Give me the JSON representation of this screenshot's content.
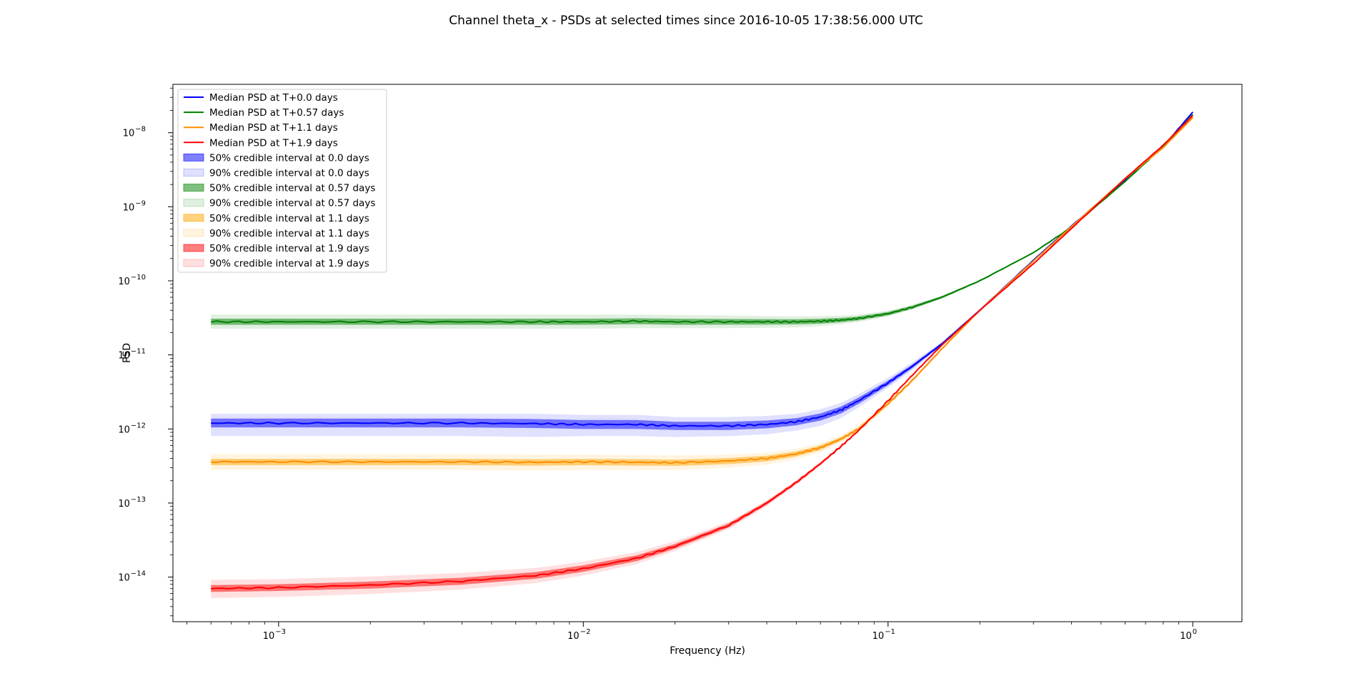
{
  "chart_data": {
    "type": "line",
    "title": "Channel theta_x - PSDs at selected times since 2016-10-05 17:38:56.000 UTC",
    "xlabel": "Frequency (Hz)",
    "ylabel": "PSD",
    "xscale": "log",
    "yscale": "log",
    "xlim": [
      0.00045,
      1.45
    ],
    "ylim": [
      2.5e-15,
      4.5e-08
    ],
    "grid": false,
    "legend_position": "top-left",
    "x_ticks": [
      {
        "value": 0.001,
        "base": "10",
        "exp": "−3"
      },
      {
        "value": 0.01,
        "base": "10",
        "exp": "−2"
      },
      {
        "value": 0.1,
        "base": "10",
        "exp": "−1"
      },
      {
        "value": 1,
        "base": "10",
        "exp": "0"
      }
    ],
    "y_ticks": [
      {
        "value": 1e-14,
        "base": "10",
        "exp": "−14"
      },
      {
        "value": 1e-13,
        "base": "10",
        "exp": "−13"
      },
      {
        "value": 1e-12,
        "base": "10",
        "exp": "−12"
      },
      {
        "value": 1e-11,
        "base": "10",
        "exp": "−11"
      },
      {
        "value": 1e-10,
        "base": "10",
        "exp": "−10"
      },
      {
        "value": 1e-09,
        "base": "10",
        "exp": "−9"
      },
      {
        "value": 1e-08,
        "base": "10",
        "exp": "−8"
      }
    ],
    "x": [
      0.0006,
      0.001,
      0.002,
      0.004,
      0.007,
      0.01,
      0.015,
      0.02,
      0.03,
      0.04,
      0.05,
      0.06,
      0.07,
      0.08,
      0.1,
      0.12,
      0.15,
      0.2,
      0.3,
      0.4,
      0.6,
      0.8,
      1.0
    ],
    "series": [
      {
        "name": "Median PSD at T+0.0 days",
        "color": "#0000ff",
        "values": [
          1.2e-12,
          1.2e-12,
          1.2e-12,
          1.2e-12,
          1.18e-12,
          1.15e-12,
          1.15e-12,
          1.1e-12,
          1.1e-12,
          1.15e-12,
          1.25e-12,
          1.45e-12,
          1.8e-12,
          2.4e-12,
          4.2e-12,
          7e-12,
          1.4e-11,
          4e-11,
          1.9e-10,
          5.5e-10,
          2.3e-09,
          6.5e-09,
          1.9e-08
        ],
        "band50": [
          [
            1.05e-12,
            1.38e-12
          ],
          [
            1.05e-12,
            1.38e-12
          ],
          [
            1.05e-12,
            1.38e-12
          ],
          [
            1.05e-12,
            1.38e-12
          ],
          [
            1.03e-12,
            1.36e-12
          ],
          [
            1e-12,
            1.32e-12
          ],
          [
            1e-12,
            1.32e-12
          ],
          [
            9.7e-13,
            1.25e-12
          ],
          [
            9.7e-13,
            1.25e-12
          ],
          [
            1.02e-12,
            1.3e-12
          ],
          [
            1.12e-12,
            1.4e-12
          ],
          [
            1.3e-12,
            1.62e-12
          ],
          [
            1.62e-12,
            2e-12
          ],
          [
            2.18e-12,
            2.65e-12
          ],
          [
            3.9e-12,
            4.5e-12
          ],
          [
            6.6e-12,
            7.4e-12
          ],
          [
            1.35e-11,
            1.45e-11
          ],
          [
            3.9e-11,
            4.1e-11
          ],
          [
            1.87e-10,
            1.93e-10
          ],
          [
            5.4e-10,
            5.6e-10
          ],
          [
            2.25e-09,
            2.35e-09
          ],
          [
            6.4e-09,
            6.6e-09
          ],
          [
            1.87e-08,
            1.93e-08
          ]
        ],
        "band90": [
          [
            8e-13,
            1.6e-12
          ],
          [
            8e-13,
            1.6e-12
          ],
          [
            8e-13,
            1.6e-12
          ],
          [
            8e-13,
            1.6e-12
          ],
          [
            7.8e-13,
            1.6e-12
          ],
          [
            8e-13,
            1.55e-12
          ],
          [
            8e-13,
            1.55e-12
          ],
          [
            7.8e-13,
            1.45e-12
          ],
          [
            8e-13,
            1.45e-12
          ],
          [
            8.5e-13,
            1.5e-12
          ],
          [
            9.5e-13,
            1.6e-12
          ],
          [
            1.1e-12,
            1.85e-12
          ],
          [
            1.4e-12,
            2.25e-12
          ],
          [
            1.95e-12,
            2.95e-12
          ],
          [
            3.6e-12,
            4.9e-12
          ],
          [
            6.2e-12,
            7.9e-12
          ],
          [
            1.3e-11,
            1.5e-11
          ],
          [
            3.8e-11,
            4.2e-11
          ],
          [
            1.85e-10,
            1.95e-10
          ],
          [
            5.35e-10,
            5.65e-10
          ],
          [
            2.23e-09,
            2.37e-09
          ],
          [
            6.35e-09,
            6.65e-09
          ],
          [
            1.85e-08,
            1.95e-08
          ]
        ]
      },
      {
        "name": "Median PSD at T+0.57 days",
        "color": "#008000",
        "values": [
          2.8e-11,
          2.8e-11,
          2.8e-11,
          2.8e-11,
          2.8e-11,
          2.8e-11,
          2.85e-11,
          2.8e-11,
          2.8e-11,
          2.8e-11,
          2.8e-11,
          2.85e-11,
          2.95e-11,
          3.1e-11,
          3.6e-11,
          4.4e-11,
          6e-11,
          1e-10,
          2.4e-10,
          5.3e-10,
          2.2e-09,
          6.5e-09,
          1.75e-08
        ],
        "band50": [
          [
            2.55e-11,
            3.08e-11
          ],
          [
            2.55e-11,
            3.08e-11
          ],
          [
            2.55e-11,
            3.08e-11
          ],
          [
            2.55e-11,
            3.08e-11
          ],
          [
            2.55e-11,
            3.08e-11
          ],
          [
            2.55e-11,
            3.08e-11
          ],
          [
            2.6e-11,
            3.12e-11
          ],
          [
            2.55e-11,
            3.08e-11
          ],
          [
            2.56e-11,
            3.05e-11
          ],
          [
            2.57e-11,
            3.04e-11
          ],
          [
            2.58e-11,
            3.03e-11
          ],
          [
            2.64e-11,
            3.08e-11
          ],
          [
            2.76e-11,
            3.16e-11
          ],
          [
            2.93e-11,
            3.3e-11
          ],
          [
            3.42e-11,
            3.8e-11
          ],
          [
            4.2e-11,
            4.6e-11
          ],
          [
            5.8e-11,
            6.2e-11
          ],
          [
            9.8e-11,
            1.02e-10
          ],
          [
            2.37e-10,
            2.43e-10
          ],
          [
            5.25e-10,
            5.35e-10
          ],
          [
            2.18e-09,
            2.22e-09
          ],
          [
            6.45e-09,
            6.55e-09
          ],
          [
            1.73e-08,
            1.77e-08
          ]
        ],
        "band90": [
          [
            2.25e-11,
            3.5e-11
          ],
          [
            2.25e-11,
            3.5e-11
          ],
          [
            2.25e-11,
            3.5e-11
          ],
          [
            2.25e-11,
            3.5e-11
          ],
          [
            2.25e-11,
            3.5e-11
          ],
          [
            2.25e-11,
            3.5e-11
          ],
          [
            2.3e-11,
            3.5e-11
          ],
          [
            2.3e-11,
            3.45e-11
          ],
          [
            2.3e-11,
            3.4e-11
          ],
          [
            2.32e-11,
            3.35e-11
          ],
          [
            2.35e-11,
            3.32e-11
          ],
          [
            2.45e-11,
            3.35e-11
          ],
          [
            2.6e-11,
            3.4e-11
          ],
          [
            2.78e-11,
            3.5e-11
          ],
          [
            3.3e-11,
            3.95e-11
          ],
          [
            4.1e-11,
            4.75e-11
          ],
          [
            5.7e-11,
            6.3e-11
          ],
          [
            9.7e-11,
            1.03e-10
          ],
          [
            2.35e-10,
            2.45e-10
          ],
          [
            5.2e-10,
            5.4e-10
          ],
          [
            2.16e-09,
            2.24e-09
          ],
          [
            6.4e-09,
            6.6e-09
          ],
          [
            1.72e-08,
            1.78e-08
          ]
        ]
      },
      {
        "name": "Median PSD at T+1.1 days",
        "color": "#ff8c00",
        "values": [
          3.6e-13,
          3.6e-13,
          3.6e-13,
          3.6e-13,
          3.55e-13,
          3.6e-13,
          3.55e-13,
          3.5e-13,
          3.7e-13,
          4e-13,
          4.6e-13,
          5.6e-13,
          7.3e-13,
          1e-12,
          2.2e-12,
          4.5e-12,
          1.2e-11,
          4e-11,
          1.85e-10,
          5.4e-10,
          2.4e-09,
          6.3e-09,
          1.6e-08
        ],
        "band50": [
          [
            3.25e-13,
            3.95e-13
          ],
          [
            3.25e-13,
            3.95e-13
          ],
          [
            3.25e-13,
            3.95e-13
          ],
          [
            3.25e-13,
            3.95e-13
          ],
          [
            3.2e-13,
            3.9e-13
          ],
          [
            3.25e-13,
            3.95e-13
          ],
          [
            3.2e-13,
            3.9e-13
          ],
          [
            3.17e-13,
            3.85e-13
          ],
          [
            3.35e-13,
            4.05e-13
          ],
          [
            3.65e-13,
            4.35e-13
          ],
          [
            4.25e-13,
            4.98e-13
          ],
          [
            5.2e-13,
            6e-13
          ],
          [
            6.9e-13,
            7.75e-13
          ],
          [
            9.5e-13,
            1.05e-12
          ],
          [
            2.1e-12,
            2.3e-12
          ],
          [
            4.35e-12,
            4.65e-12
          ],
          [
            1.17e-11,
            1.23e-11
          ],
          [
            3.9e-11,
            4.1e-11
          ],
          [
            1.82e-10,
            1.88e-10
          ],
          [
            5.35e-10,
            5.45e-10
          ],
          [
            2.37e-09,
            2.43e-09
          ],
          [
            6.25e-09,
            6.35e-09
          ],
          [
            1.58e-08,
            1.62e-08
          ]
        ],
        "band90": [
          [
            2.8e-13,
            4.6e-13
          ],
          [
            2.8e-13,
            4.6e-13
          ],
          [
            2.8e-13,
            4.6e-13
          ],
          [
            2.8e-13,
            4.6e-13
          ],
          [
            2.75e-13,
            4.5e-13
          ],
          [
            2.8e-13,
            4.5e-13
          ],
          [
            2.8e-13,
            4.45e-13
          ],
          [
            2.8e-13,
            4.4e-13
          ],
          [
            3e-13,
            4.5e-13
          ],
          [
            3.3e-13,
            4.8e-13
          ],
          [
            3.9e-13,
            5.4e-13
          ],
          [
            4.85e-13,
            6.45e-13
          ],
          [
            6.5e-13,
            8.2e-13
          ],
          [
            9e-13,
            1.12e-12
          ],
          [
            2e-12,
            2.42e-12
          ],
          [
            4.2e-12,
            4.8e-12
          ],
          [
            1.15e-11,
            1.25e-11
          ],
          [
            3.85e-11,
            4.15e-11
          ],
          [
            1.8e-10,
            1.9e-10
          ],
          [
            5.3e-10,
            5.5e-10
          ],
          [
            2.35e-09,
            2.45e-09
          ],
          [
            6.2e-09,
            6.4e-09
          ],
          [
            1.57e-08,
            1.63e-08
          ]
        ]
      },
      {
        "name": "Median PSD at T+1.9 days",
        "color": "#ff0000",
        "values": [
          7e-15,
          7.2e-15,
          7.8e-15,
          8.8e-15,
          1.05e-14,
          1.3e-14,
          1.8e-14,
          2.6e-14,
          5e-14,
          1e-13,
          1.9e-13,
          3.4e-13,
          5.8e-13,
          9.5e-13,
          2.4e-12,
          5.3e-12,
          1.35e-11,
          4e-11,
          1.7e-10,
          5.1e-10,
          2.4e-09,
          6.8e-09,
          1.7e-08
        ],
        "band50": [
          [
            6.3e-15,
            7.8e-15
          ],
          [
            6.5e-15,
            8e-15
          ],
          [
            7e-15,
            8.7e-15
          ],
          [
            7.9e-15,
            9.8e-15
          ],
          [
            9.5e-15,
            1.17e-14
          ],
          [
            1.18e-14,
            1.44e-14
          ],
          [
            1.65e-14,
            1.97e-14
          ],
          [
            2.42e-14,
            2.8e-14
          ],
          [
            4.7e-14,
            5.3e-14
          ],
          [
            9.5e-14,
            1.05e-13
          ],
          [
            1.82e-13,
            1.98e-13
          ],
          [
            3.28e-13,
            3.52e-13
          ],
          [
            5.65e-13,
            5.95e-13
          ],
          [
            9.3e-13,
            9.7e-13
          ],
          [
            2.36e-12,
            2.44e-12
          ],
          [
            5.22e-12,
            5.38e-12
          ],
          [
            1.33e-11,
            1.37e-11
          ],
          [
            3.95e-11,
            4.05e-11
          ],
          [
            1.68e-10,
            1.72e-10
          ],
          [
            5.05e-10,
            5.15e-10
          ],
          [
            2.38e-09,
            2.42e-09
          ],
          [
            6.75e-09,
            6.85e-09
          ],
          [
            1.69e-08,
            1.71e-08
          ]
        ],
        "band90": [
          [
            5.2e-15,
            9.2e-15
          ],
          [
            5.4e-15,
            9.4e-15
          ],
          [
            5.9e-15,
            1.02e-14
          ],
          [
            6.8e-15,
            1.14e-14
          ],
          [
            8.3e-15,
            1.33e-14
          ],
          [
            1.05e-14,
            1.62e-14
          ],
          [
            1.5e-14,
            2.18e-14
          ],
          [
            2.25e-14,
            3.05e-14
          ],
          [
            4.45e-14,
            5.6e-14
          ],
          [
            9.1e-14,
            1.09e-13
          ],
          [
            1.76e-13,
            2.04e-13
          ],
          [
            3.2e-13,
            3.6e-13
          ],
          [
            5.55e-13,
            6.05e-13
          ],
          [
            9.2e-13,
            9.8e-13
          ],
          [
            2.34e-12,
            2.46e-12
          ],
          [
            5.2e-12,
            5.4e-12
          ],
          [
            1.32e-11,
            1.38e-11
          ],
          [
            3.93e-11,
            4.07e-11
          ],
          [
            1.67e-10,
            1.73e-10
          ],
          [
            5.02e-10,
            5.18e-10
          ],
          [
            2.37e-09,
            2.43e-09
          ],
          [
            6.72e-09,
            6.88e-09
          ],
          [
            1.68e-08,
            1.72e-08
          ]
        ]
      }
    ],
    "legend": [
      {
        "type": "line",
        "label": "Median PSD at T+0.0 days",
        "color": "#0000ff"
      },
      {
        "type": "line",
        "label": "Median PSD at T+0.57 days",
        "color": "#008000"
      },
      {
        "type": "line",
        "label": "Median PSD at T+1.1 days",
        "color": "#ff8c00"
      },
      {
        "type": "line",
        "label": "Median PSD at T+1.9 days",
        "color": "#ff0000"
      },
      {
        "type": "patch",
        "label": "50% credible interval at 0.0 days",
        "color": "#0000ff",
        "alpha": 0.5
      },
      {
        "type": "patch",
        "label": "90% credible interval at 0.0 days",
        "color": "#0000ff",
        "alpha": 0.12
      },
      {
        "type": "patch",
        "label": "50% credible interval at 0.57 days",
        "color": "#008000",
        "alpha": 0.5
      },
      {
        "type": "patch",
        "label": "90% credible interval at 0.57 days",
        "color": "#008000",
        "alpha": 0.12
      },
      {
        "type": "patch",
        "label": "50% credible interval at 1.1 days",
        "color": "#ffa500",
        "alpha": 0.5
      },
      {
        "type": "patch",
        "label": "90% credible interval at 1.1 days",
        "color": "#ffa500",
        "alpha": 0.12
      },
      {
        "type": "patch",
        "label": "50% credible interval at 1.9 days",
        "color": "#ff0000",
        "alpha": 0.5
      },
      {
        "type": "patch",
        "label": "90% credible interval at 1.9 days",
        "color": "#ff0000",
        "alpha": 0.12
      }
    ]
  }
}
